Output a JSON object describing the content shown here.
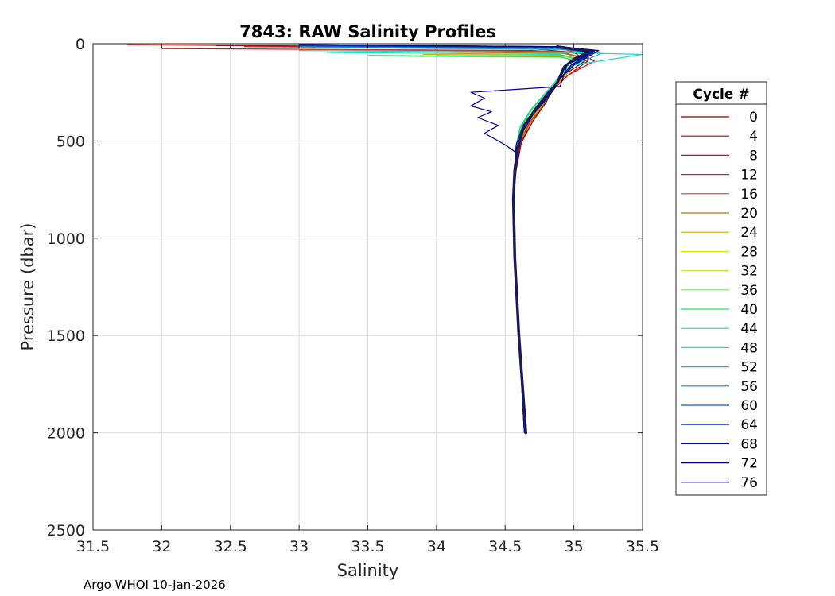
{
  "chart_data": {
    "type": "line",
    "title": "7843: RAW Salinity Profiles",
    "xlabel": "Salinity",
    "ylabel": "Pressure (dbar)",
    "xlim": [
      31.5,
      35.5
    ],
    "ylim": [
      0,
      2500
    ],
    "y_reversed": true,
    "grid": true,
    "x_ticks": [
      "31.5",
      "32",
      "32.5",
      "33",
      "33.5",
      "34",
      "34.5",
      "35",
      "35.5"
    ],
    "y_ticks": [
      "0",
      "500",
      "1000",
      "1500",
      "2000",
      "2500"
    ],
    "legend": {
      "title": "Cycle #",
      "placement": "right",
      "entries": [
        {
          "label": "0",
          "color": "#800000"
        },
        {
          "label": "4",
          "color": "#bb0000"
        },
        {
          "label": "8",
          "color": "#ee0000"
        },
        {
          "label": "12",
          "color": "#e31a1c"
        },
        {
          "label": "16",
          "color": "#d94020"
        },
        {
          "label": "20",
          "color": "#b87800"
        },
        {
          "label": "24",
          "color": "#d4b000"
        },
        {
          "label": "28",
          "color": "#e8e800"
        },
        {
          "label": "32",
          "color": "#c8e840"
        },
        {
          "label": "36",
          "color": "#80e060"
        },
        {
          "label": "40",
          "color": "#20e060"
        },
        {
          "label": "44",
          "color": "#20e0a0"
        },
        {
          "label": "48",
          "color": "#20d8d8"
        },
        {
          "label": "52",
          "color": "#10b8d0"
        },
        {
          "label": "56",
          "color": "#0890b8"
        },
        {
          "label": "60",
          "color": "#0060c0"
        },
        {
          "label": "64",
          "color": "#0030c8"
        },
        {
          "label": "68",
          "color": "#0010a0"
        },
        {
          "label": "72",
          "color": "#000080"
        },
        {
          "label": "76",
          "color": "#000098"
        }
      ]
    },
    "series": [
      {
        "cycle": 0,
        "color": "#800000",
        "x": [
          32.4,
          34.85,
          35.05,
          35.1,
          34.95,
          34.85,
          34.8,
          34.7,
          34.62,
          34.58,
          34.56,
          34.57,
          34.6,
          34.64
        ],
        "y": [
          10,
          20,
          40,
          80,
          150,
          220,
          300,
          400,
          500,
          650,
          800,
          1100,
          1500,
          2000
        ]
      },
      {
        "cycle": 4,
        "color": "#bb0000",
        "x": [
          31.75,
          34.6,
          35.0,
          35.1,
          34.96,
          34.85,
          34.78,
          34.7,
          34.61,
          34.57,
          34.56,
          34.57,
          34.6,
          34.64
        ],
        "y": [
          5,
          20,
          45,
          90,
          160,
          230,
          310,
          400,
          520,
          650,
          800,
          1100,
          1500,
          2000
        ]
      },
      {
        "cycle": 8,
        "color": "#ee0000",
        "x": [
          32.0,
          34.7,
          35.05,
          35.15,
          34.96,
          34.86,
          34.78,
          34.68,
          34.6,
          34.57,
          34.56,
          34.57,
          34.6,
          34.64
        ],
        "y": [
          25,
          35,
          50,
          90,
          160,
          230,
          310,
          400,
          520,
          650,
          800,
          1100,
          1500,
          2000
        ]
      },
      {
        "cycle": 12,
        "color": "#e31a1c",
        "x": [
          32.6,
          34.9,
          35.1,
          35.0,
          34.92,
          34.84,
          34.76,
          34.68,
          34.6,
          34.57,
          34.56,
          34.57,
          34.6,
          34.64
        ],
        "y": [
          15,
          25,
          60,
          100,
          170,
          240,
          320,
          410,
          520,
          650,
          800,
          1100,
          1500,
          2000
        ]
      },
      {
        "cycle": 16,
        "color": "#d94020",
        "x": [
          33.0,
          34.9,
          35.05,
          34.98,
          34.92,
          34.84,
          34.76,
          34.67,
          34.6,
          34.57,
          34.56,
          34.57,
          34.6,
          34.64
        ],
        "y": [
          30,
          40,
          70,
          110,
          170,
          240,
          320,
          410,
          520,
          650,
          800,
          1100,
          1500,
          2000
        ]
      },
      {
        "cycle": 20,
        "color": "#b87800",
        "x": [
          33.6,
          34.92,
          35.08,
          35.0,
          34.93,
          34.85,
          34.77,
          34.68,
          34.6,
          34.57,
          34.56,
          34.57,
          34.6,
          34.64
        ],
        "y": [
          40,
          50,
          75,
          110,
          170,
          240,
          320,
          410,
          520,
          650,
          800,
          1100,
          1500,
          2000
        ]
      },
      {
        "cycle": 24,
        "color": "#d4b000",
        "x": [
          33.9,
          34.93,
          35.06,
          34.99,
          34.92,
          34.84,
          34.76,
          34.66,
          34.6,
          34.57,
          34.56,
          34.57,
          34.6,
          34.64
        ],
        "y": [
          55,
          60,
          80,
          115,
          175,
          245,
          325,
          410,
          520,
          650,
          800,
          1100,
          1500,
          2000
        ]
      },
      {
        "cycle": 28,
        "color": "#e8e800",
        "x": [
          34.1,
          34.94,
          35.05,
          34.98,
          34.91,
          34.83,
          34.74,
          34.65,
          34.59,
          34.57,
          34.56,
          34.57,
          34.6,
          34.64
        ],
        "y": [
          60,
          65,
          85,
          120,
          180,
          250,
          330,
          420,
          520,
          650,
          800,
          1100,
          1500,
          2000
        ]
      },
      {
        "cycle": 32,
        "color": "#c8e840",
        "x": [
          34.0,
          34.93,
          35.04,
          34.97,
          34.9,
          34.82,
          34.72,
          34.64,
          34.59,
          34.57,
          34.56,
          34.57,
          34.6,
          34.64
        ],
        "y": [
          60,
          65,
          85,
          120,
          180,
          250,
          330,
          420,
          520,
          650,
          800,
          1100,
          1500,
          2000
        ]
      },
      {
        "cycle": 36,
        "color": "#80e060",
        "x": [
          33.8,
          34.92,
          35.03,
          34.96,
          34.89,
          34.8,
          34.7,
          34.62,
          34.58,
          34.57,
          34.56,
          34.57,
          34.6,
          34.64
        ],
        "y": [
          65,
          70,
          90,
          125,
          185,
          255,
          335,
          425,
          520,
          650,
          800,
          1100,
          1500,
          2000
        ]
      },
      {
        "cycle": 40,
        "color": "#20e060",
        "x": [
          33.5,
          34.9,
          35.02,
          34.95,
          34.88,
          34.79,
          34.69,
          34.61,
          34.58,
          34.57,
          34.56,
          34.57,
          34.6,
          34.64
        ],
        "y": [
          60,
          68,
          90,
          125,
          185,
          255,
          335,
          425,
          520,
          650,
          800,
          1100,
          1500,
          2000
        ]
      },
      {
        "cycle": 44,
        "color": "#20e0a0",
        "x": [
          33.2,
          34.9,
          35.04,
          34.96,
          34.88,
          34.8,
          34.7,
          34.62,
          34.58,
          34.57,
          34.56,
          34.57,
          34.6,
          34.64
        ],
        "y": [
          45,
          55,
          85,
          120,
          180,
          250,
          330,
          420,
          520,
          650,
          800,
          1100,
          1500,
          2000
        ]
      },
      {
        "cycle": 48,
        "color": "#20d8d8",
        "x": [
          33.0,
          34.92,
          35.5,
          35.0,
          34.9,
          34.82,
          34.74,
          34.64,
          34.59,
          34.57,
          34.56,
          34.57,
          34.6,
          34.64
        ],
        "y": [
          35,
          45,
          55,
          110,
          180,
          250,
          330,
          420,
          520,
          650,
          800,
          1100,
          1500,
          2000
        ]
      },
      {
        "cycle": 52,
        "color": "#10b8d0",
        "x": [
          33.1,
          34.9,
          35.2,
          35.0,
          34.9,
          34.81,
          34.72,
          34.64,
          34.59,
          34.57,
          34.56,
          34.57,
          34.6,
          34.64
        ],
        "y": [
          20,
          30,
          50,
          110,
          180,
          250,
          330,
          420,
          520,
          650,
          800,
          1100,
          1500,
          2000
        ]
      },
      {
        "cycle": 56,
        "color": "#0890b8",
        "x": [
          33.0,
          34.88,
          35.1,
          34.99,
          34.9,
          34.82,
          34.73,
          34.64,
          34.59,
          34.57,
          34.56,
          34.57,
          34.6,
          34.64
        ],
        "y": [
          15,
          25,
          45,
          110,
          180,
          250,
          330,
          420,
          520,
          650,
          800,
          1100,
          1500,
          2000
        ]
      },
      {
        "cycle": 60,
        "color": "#0060c0",
        "x": [
          33.0,
          34.85,
          35.12,
          35.0,
          34.9,
          34.82,
          34.73,
          34.64,
          34.59,
          34.57,
          34.56,
          34.57,
          34.6,
          34.64
        ],
        "y": [
          10,
          20,
          40,
          110,
          180,
          250,
          330,
          420,
          520,
          650,
          800,
          1100,
          1500,
          2000
        ]
      },
      {
        "cycle": 64,
        "color": "#0030c8",
        "x": [
          33.0,
          34.85,
          35.15,
          35.0,
          34.9,
          34.82,
          34.73,
          34.64,
          34.59,
          34.57,
          34.56,
          34.57,
          34.6,
          34.64
        ],
        "y": [
          8,
          18,
          40,
          110,
          180,
          250,
          330,
          420,
          520,
          650,
          800,
          1100,
          1500,
          2000
        ]
      },
      {
        "cycle": 68,
        "color": "#0010a0",
        "x": [
          33.0,
          34.88,
          35.15,
          34.98,
          34.9,
          34.82,
          34.72,
          34.64,
          34.59,
          34.57,
          34.56,
          34.57,
          34.6,
          34.64
        ],
        "y": [
          5,
          15,
          35,
          110,
          180,
          250,
          330,
          420,
          520,
          650,
          800,
          1100,
          1500,
          2000
        ]
      },
      {
        "cycle": 72,
        "color": "#000080",
        "x": [
          33.0,
          34.9,
          35.18,
          35.0,
          34.9,
          34.81,
          34.72,
          34.63,
          34.58,
          34.57,
          34.56,
          34.57,
          34.6,
          34.65
        ],
        "y": [
          5,
          15,
          35,
          110,
          180,
          250,
          330,
          420,
          520,
          650,
          800,
          1100,
          1500,
          2000
        ]
      },
      {
        "cycle": 76,
        "color": "#000098",
        "x": [
          33.0,
          34.9,
          35.15,
          34.95,
          34.9,
          34.25,
          34.35,
          34.25,
          34.4,
          34.3,
          34.45,
          34.35,
          34.5,
          34.6,
          34.57,
          34.56,
          34.57,
          34.6,
          34.65
        ],
        "y": [
          5,
          15,
          35,
          110,
          220,
          250,
          280,
          320,
          350,
          380,
          420,
          460,
          520,
          570,
          650,
          800,
          1100,
          1500,
          2000
        ]
      }
    ],
    "mean_profile": {
      "color": "#1a1a5a",
      "x": [
        34.88,
        35.12,
        35.0,
        34.93,
        34.88,
        34.8,
        34.7,
        34.63,
        34.59,
        34.57,
        34.56,
        34.57,
        34.6,
        34.65
      ],
      "y": [
        15,
        40,
        80,
        120,
        200,
        280,
        360,
        440,
        540,
        650,
        800,
        1100,
        1500,
        2000
      ]
    }
  },
  "footer": {
    "text": "Argo WHOI 10-Jan-2026"
  }
}
